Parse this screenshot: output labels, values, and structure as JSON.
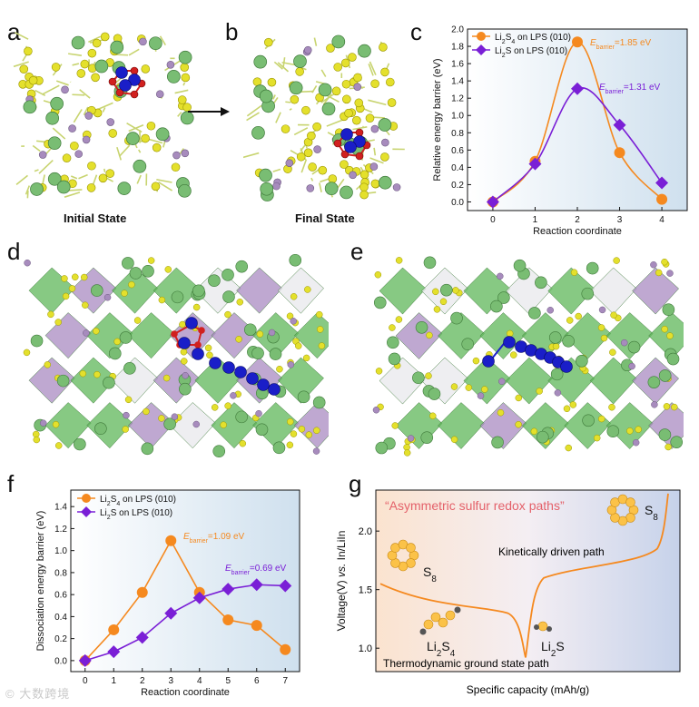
{
  "panels": {
    "a": {
      "letter": "a",
      "caption": "Initial State"
    },
    "b": {
      "letter": "b",
      "caption": "Final State"
    },
    "c": {
      "letter": "c"
    },
    "d": {
      "letter": "d"
    },
    "e": {
      "letter": "e"
    },
    "f": {
      "letter": "f"
    },
    "g": {
      "letter": "g"
    }
  },
  "colors": {
    "orange": "#f5891f",
    "purple": "#7a1fd6",
    "li_green": "#79bd73",
    "s_yellow": "#e4e02c",
    "p_purple": "#a78bbd",
    "o_red": "#d1201f",
    "blue": "#1a1ec8",
    "poly_green": "#5fb75a",
    "poly_purple": "#a98bc2",
    "poly_white": "#e8e8ec",
    "title_red": "#e4616a"
  },
  "chart_data": [
    {
      "id": "c",
      "type": "line",
      "xlabel": "Reaction coordinate",
      "ylabel": "Relative energy barrier (eV)",
      "xlim": [
        -0.6,
        4.6
      ],
      "ylim": [
        -0.1,
        2.0
      ],
      "xticks": [
        0,
        1,
        2,
        3,
        4
      ],
      "yticks": [
        0.0,
        0.2,
        0.4,
        0.6,
        0.8,
        1.0,
        1.2,
        1.4,
        1.6,
        1.8,
        2.0
      ],
      "ytick_labels": [
        "0.0",
        "0.2",
        "0.4",
        "0.6",
        "0.8",
        "1.0",
        "1.2",
        "1.4",
        "1.6",
        "1.8",
        "2.0"
      ],
      "legend_position": "top-left",
      "series": [
        {
          "name_main": "Li",
          "name_sub1": "2",
          "name_mid": "S",
          "name_sub2": "4",
          "name_rest": " on LPS (010)",
          "marker": "circle",
          "color": "#f5891f",
          "x": [
            0,
            1,
            2,
            3,
            4
          ],
          "y": [
            0.0,
            0.47,
            1.85,
            0.57,
            0.03
          ]
        },
        {
          "name_main": "Li",
          "name_sub1": "2",
          "name_mid": "S",
          "name_sub2": "",
          "name_rest": " on LPS (010)",
          "marker": "diamond",
          "color": "#7a1fd6",
          "x": [
            0,
            1,
            2,
            3,
            4
          ],
          "y": [
            0.0,
            0.44,
            1.31,
            0.89,
            0.22
          ]
        }
      ],
      "annotations": [
        {
          "main": "E",
          "sub": "barrier",
          "rest": "=1.85 eV",
          "color": "#f5891f"
        },
        {
          "main": "E",
          "sub": "barrier",
          "rest": "=1.31 eV",
          "color": "#7a1fd6"
        }
      ]
    },
    {
      "id": "f",
      "type": "line",
      "xlabel": "Reaction coordinate",
      "ylabel": "Dissociation energy barrier (eV)",
      "xlim": [
        -0.5,
        7.5
      ],
      "ylim": [
        -0.1,
        1.55
      ],
      "xticks": [
        0,
        1,
        2,
        3,
        4,
        5,
        6,
        7
      ],
      "yticks": [
        0.0,
        0.2,
        0.4,
        0.6,
        0.8,
        1.0,
        1.2,
        1.4
      ],
      "ytick_labels": [
        "0.0",
        "0.2",
        "0.4",
        "0.6",
        "0.8",
        "1.0",
        "1.2",
        "1.4"
      ],
      "legend_position": "top-left",
      "series": [
        {
          "name_main": "Li",
          "name_sub1": "2",
          "name_mid": "S",
          "name_sub2": "4",
          "name_rest": " on LPS (010)",
          "marker": "circle",
          "color": "#f5891f",
          "x": [
            0,
            1,
            2,
            3,
            4,
            5,
            6,
            7
          ],
          "y": [
            0.0,
            0.28,
            0.62,
            1.09,
            0.62,
            0.37,
            0.32,
            0.1
          ]
        },
        {
          "name_main": "Li",
          "name_sub1": "2",
          "name_mid": "S",
          "name_sub2": "",
          "name_rest": " on LPS (010)",
          "marker": "diamond",
          "color": "#7a1fd6",
          "x": [
            0,
            1,
            2,
            3,
            4,
            5,
            6,
            7
          ],
          "y": [
            0.0,
            0.08,
            0.21,
            0.43,
            0.57,
            0.65,
            0.69,
            0.68
          ]
        }
      ],
      "annotations": [
        {
          "main": "E",
          "sub": "barrier",
          "rest": "=1.09 eV",
          "color": "#f5891f"
        },
        {
          "main": "E",
          "sub": "barrier",
          "rest": "=0.69 eV",
          "color": "#7a1fd6"
        }
      ]
    },
    {
      "id": "g",
      "type": "line",
      "xlabel": "Specific capacity (mAh/g)",
      "ylabel_parts": [
        "Voltage(V) ",
        "vs.",
        " In/LiIn"
      ],
      "ylim": [
        0.8,
        2.35
      ],
      "yticks": [
        1.0,
        1.5,
        2.0
      ],
      "ytick_labels": [
        "1.0",
        "1.5",
        "2.0"
      ],
      "title": "“Asymmetric sulfur redox paths”",
      "labels": {
        "kinetic": "Kinetically driven path",
        "thermo": "Thermodynamic ground state path",
        "s8_left": "S",
        "s8_left_sub": "8",
        "s8_right": "S",
        "s8_right_sub": "8",
        "li2s4_main": "Li",
        "li2s4_sub1": "2",
        "li2s4_mid": "S",
        "li2s4_sub2": "4",
        "li2s_main": "Li",
        "li2s_sub": "2",
        "li2s_rest": "S"
      }
    }
  ],
  "watermark": "© 大数跨境"
}
